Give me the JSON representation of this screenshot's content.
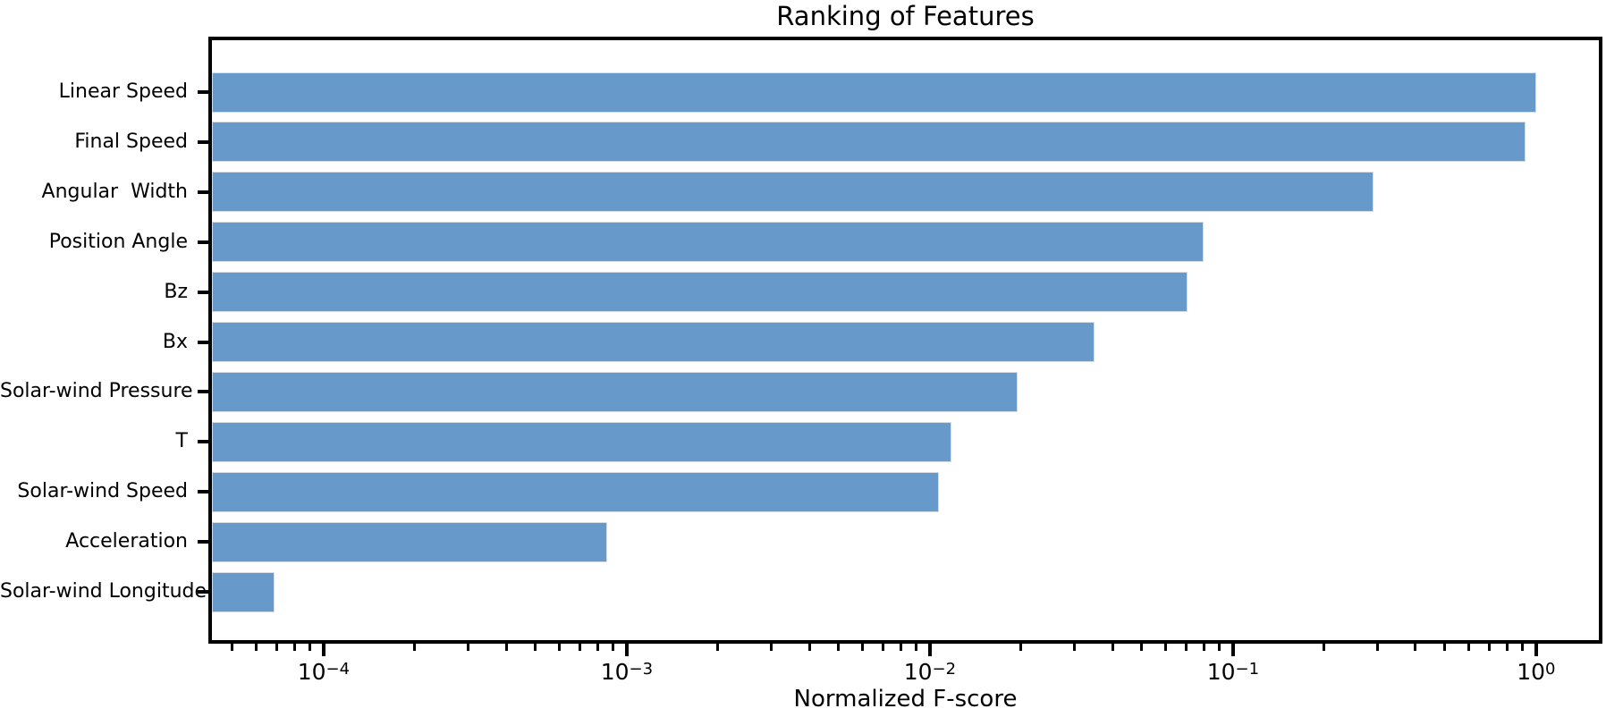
{
  "chart_data": {
    "type": "bar",
    "orientation": "horizontal",
    "title": "Ranking of Features",
    "xlabel": "Normalized F-score",
    "ylabel": "",
    "x_scale": "log",
    "grid": false,
    "legend": null,
    "xlim": [
      4.28e-05,
      1.61
    ],
    "categories": [
      "Linear Speed",
      "Final Speed",
      "Angular  Width",
      "Position Angle",
      "Bz",
      "Bx",
      "Solar-wind Pressure",
      "T",
      "Solar-wind Speed",
      "Acceleration",
      "Solar-wind Longitude"
    ],
    "values": [
      1.0,
      0.92,
      0.29,
      0.08,
      0.071,
      0.035,
      0.0195,
      0.0118,
      0.0107,
      0.00086,
      6.9e-05
    ],
    "x_ticks": [
      {
        "exp": -4,
        "label": "10⁻⁴"
      },
      {
        "exp": -3,
        "label": "10⁻³"
      },
      {
        "exp": -2,
        "label": "10⁻²"
      },
      {
        "exp": -1,
        "label": "10⁻¹"
      },
      {
        "exp": 0,
        "label": "10⁰"
      }
    ],
    "minor_tick_multiples": [
      2,
      3,
      4,
      5,
      6,
      7,
      8,
      9
    ],
    "bar_color": "#6899cb",
    "bar_edge_color": "#d7dde4",
    "axis_color": "#000000",
    "text_color": "#000000"
  }
}
